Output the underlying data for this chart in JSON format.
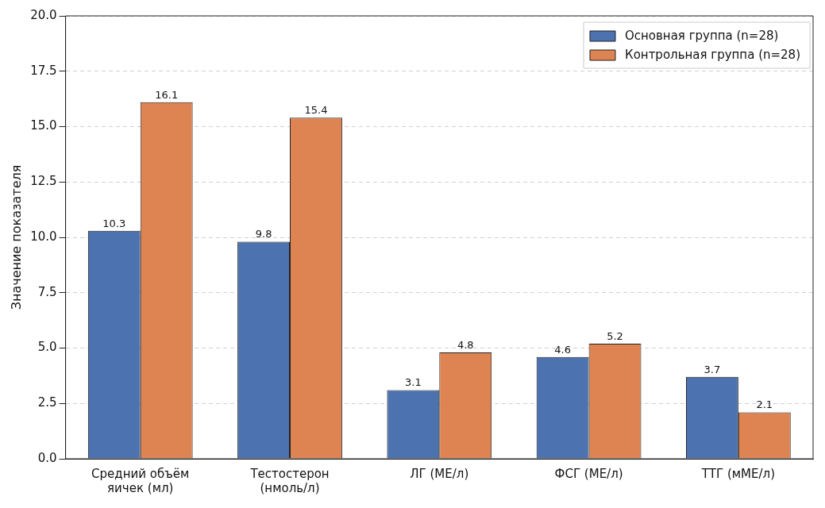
{
  "chart_data": {
    "type": "bar",
    "ylabel": "Значение показателя",
    "categories": [
      "Средний объём\nяичек (мл)",
      "Тестостерон\n(нмоль/л)",
      "ЛГ (МЕ/л)",
      "ФСГ (МЕ/л)",
      "ТТГ (мМЕ/л)"
    ],
    "series": [
      {
        "name": "Основная группа (n=28)",
        "color": "#4c72b0",
        "values": [
          10.3,
          9.8,
          3.1,
          4.6,
          3.7
        ]
      },
      {
        "name": "Контрольная группа (n=28)",
        "color": "#dd8452",
        "values": [
          16.1,
          15.4,
          4.8,
          5.2,
          2.1
        ]
      }
    ],
    "ylim": [
      0,
      20
    ],
    "yticks": [
      {
        "value": 0,
        "label": "0.0"
      },
      {
        "value": 2.5,
        "label": "2.5"
      },
      {
        "value": 5,
        "label": "5.0"
      },
      {
        "value": 7.5,
        "label": "7.5"
      },
      {
        "value": 10,
        "label": "10.0"
      },
      {
        "value": 12.5,
        "label": "12.5"
      },
      {
        "value": 15,
        "label": "15.0"
      },
      {
        "value": 17.5,
        "label": "17.5"
      },
      {
        "value": 20,
        "label": "20.0"
      }
    ],
    "grid": "y",
    "legend": "top right",
    "data_labels": true
  }
}
